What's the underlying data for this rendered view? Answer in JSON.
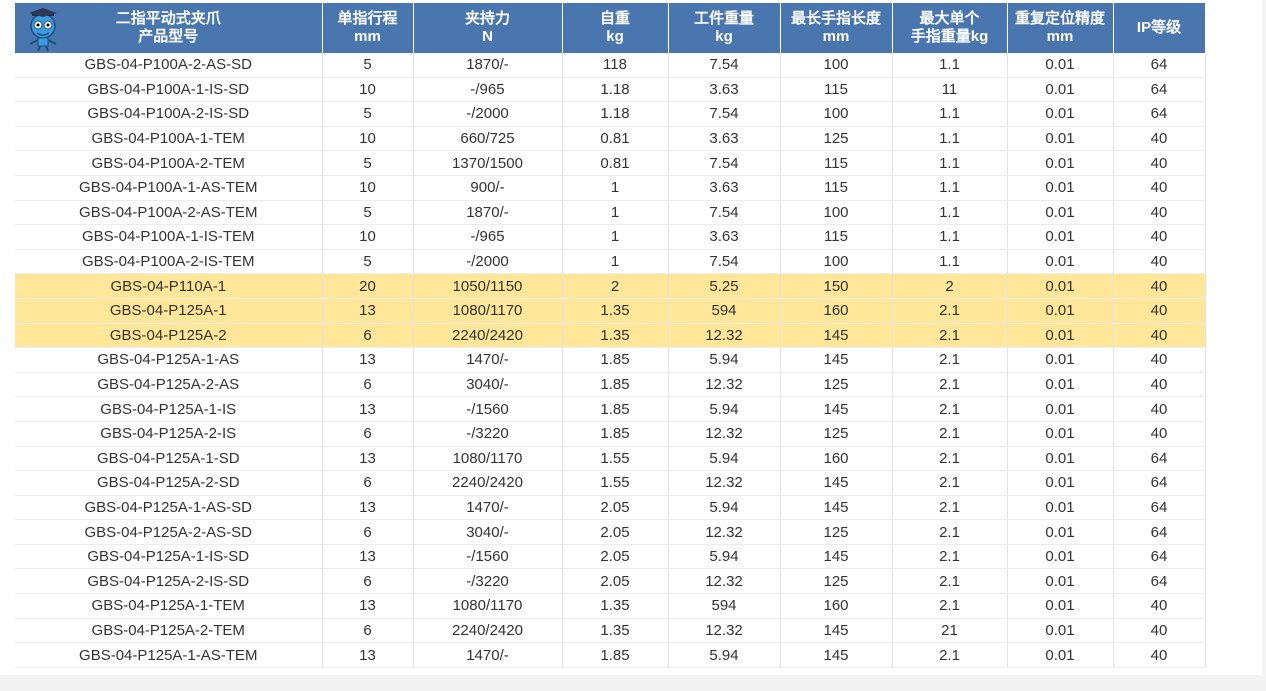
{
  "table": {
    "header": [
      [
        "二指平动式夹爪",
        "产品型号"
      ],
      [
        "单指行程",
        "mm"
      ],
      [
        "夹持力",
        "N"
      ],
      [
        "自重",
        "kg"
      ],
      [
        "工件重量",
        "kg"
      ],
      [
        "最长手指长度",
        "mm"
      ],
      [
        "最大单个",
        "手指重量kg"
      ],
      [
        "重复定位精度",
        "mm"
      ],
      [
        "IP等级"
      ]
    ],
    "highlighted_rows": [
      9,
      10,
      11
    ],
    "rows": [
      [
        "GBS-04-P100A-2-AS-SD",
        "5",
        "1870/-",
        "118",
        "7.54",
        "100",
        "1.1",
        "0.01",
        "64"
      ],
      [
        "GBS-04-P100A-1-IS-SD",
        "10",
        "-/965",
        "1.18",
        "3.63",
        "115",
        "11",
        "0.01",
        "64"
      ],
      [
        "GBS-04-P100A-2-IS-SD",
        "5",
        "-/2000",
        "1.18",
        "7.54",
        "100",
        "1.1",
        "0.01",
        "64"
      ],
      [
        "GBS-04-P100A-1-TEM",
        "10",
        "660/725",
        "0.81",
        "3.63",
        "125",
        "1.1",
        "0.01",
        "40"
      ],
      [
        "GBS-04-P100A-2-TEM",
        "5",
        "1370/1500",
        "0.81",
        "7.54",
        "115",
        "1.1",
        "0.01",
        "40"
      ],
      [
        "GBS-04-P100A-1-AS-TEM",
        "10",
        "900/-",
        "1",
        "3.63",
        "115",
        "1.1",
        "0.01",
        "40"
      ],
      [
        "GBS-04-P100A-2-AS-TEM",
        "5",
        "1870/-",
        "1",
        "7.54",
        "100",
        "1.1",
        "0.01",
        "40"
      ],
      [
        "GBS-04-P100A-1-IS-TEM",
        "10",
        "-/965",
        "1",
        "3.63",
        "115",
        "1.1",
        "0.01",
        "40"
      ],
      [
        "GBS-04-P100A-2-IS-TEM",
        "5",
        "-/2000",
        "1",
        "7.54",
        "100",
        "1.1",
        "0.01",
        "40"
      ],
      [
        "GBS-04-P110A-1",
        "20",
        "1050/1150",
        "2",
        "5.25",
        "150",
        "2",
        "0.01",
        "40"
      ],
      [
        "GBS-04-P125A-1",
        "13",
        "1080/1170",
        "1.35",
        "594",
        "160",
        "2.1",
        "0.01",
        "40"
      ],
      [
        "GBS-04-P125A-2",
        "6",
        "2240/2420",
        "1.35",
        "12.32",
        "145",
        "2.1",
        "0.01",
        "40"
      ],
      [
        "GBS-04-P125A-1-AS",
        "13",
        "1470/-",
        "1.85",
        "5.94",
        "145",
        "2.1",
        "0.01",
        "40"
      ],
      [
        "GBS-04-P125A-2-AS",
        "6",
        "3040/-",
        "1.85",
        "12.32",
        "125",
        "2.1",
        "0.01",
        "40"
      ],
      [
        "GBS-04-P125A-1-IS",
        "13",
        "-/1560",
        "1.85",
        "5.94",
        "145",
        "2.1",
        "0.01",
        "40"
      ],
      [
        "GBS-04-P125A-2-IS",
        "6",
        "-/3220",
        "1.85",
        "12.32",
        "125",
        "2.1",
        "0.01",
        "40"
      ],
      [
        "GBS-04-P125A-1-SD",
        "13",
        "1080/1170",
        "1.55",
        "5.94",
        "160",
        "2.1",
        "0.01",
        "64"
      ],
      [
        "GBS-04-P125A-2-SD",
        "6",
        "2240/2420",
        "1.55",
        "12.32",
        "145",
        "2.1",
        "0.01",
        "64"
      ],
      [
        "GBS-04-P125A-1-AS-SD",
        "13",
        "1470/-",
        "2.05",
        "5.94",
        "145",
        "2.1",
        "0.01",
        "64"
      ],
      [
        "GBS-04-P125A-2-AS-SD",
        "6",
        "3040/-",
        "2.05",
        "12.32",
        "125",
        "2.1",
        "0.01",
        "64"
      ],
      [
        "GBS-04-P125A-1-IS-SD",
        "13",
        "-/1560",
        "2.05",
        "5.94",
        "145",
        "2.1",
        "0.01",
        "64"
      ],
      [
        "GBS-04-P125A-2-IS-SD",
        "6",
        "-/3220",
        "2.05",
        "12.32",
        "125",
        "2.1",
        "0.01",
        "64"
      ],
      [
        "GBS-04-P125A-1-TEM",
        "13",
        "1080/1170",
        "1.35",
        "594",
        "160",
        "2.1",
        "0.01",
        "40"
      ],
      [
        "GBS-04-P125A-2-TEM",
        "6",
        "2240/2420",
        "1.35",
        "12.32",
        "145",
        "21",
        "0.01",
        "40"
      ],
      [
        "GBS-04-P125A-1-AS-TEM",
        "13",
        "1470/-",
        "1.85",
        "5.94",
        "145",
        "2.1",
        "0.01",
        "40"
      ]
    ]
  }
}
